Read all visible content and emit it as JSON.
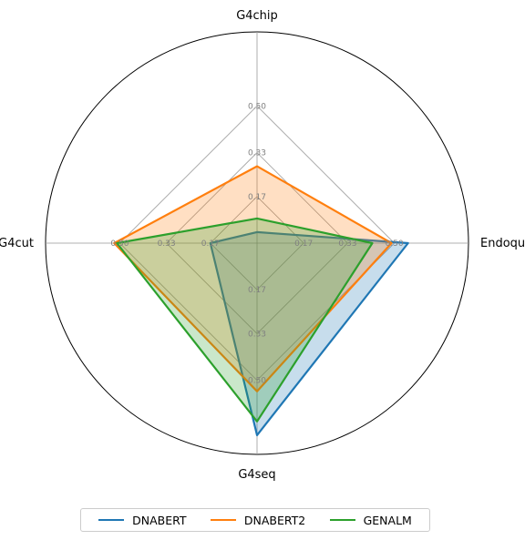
{
  "chart_data": {
    "type": "radar",
    "axes": [
      "G4chip",
      "Endoquad",
      "G4seq",
      "G4cut"
    ],
    "radial_ticks": [
      "0.17",
      "0.33",
      "0.50"
    ],
    "rmax": 0.77,
    "series": [
      {
        "name": "DNABERT",
        "values": [
          0.04,
          0.55,
          0.7,
          0.17
        ],
        "color": "#1f77b4"
      },
      {
        "name": "DNABERT2",
        "values": [
          0.28,
          0.49,
          0.54,
          0.52
        ],
        "color": "#ff7f0e"
      },
      {
        "name": "GENALM",
        "values": [
          0.09,
          0.42,
          0.65,
          0.51
        ],
        "color": "#2ca02c"
      }
    ],
    "legend_position": "bottom-center"
  }
}
